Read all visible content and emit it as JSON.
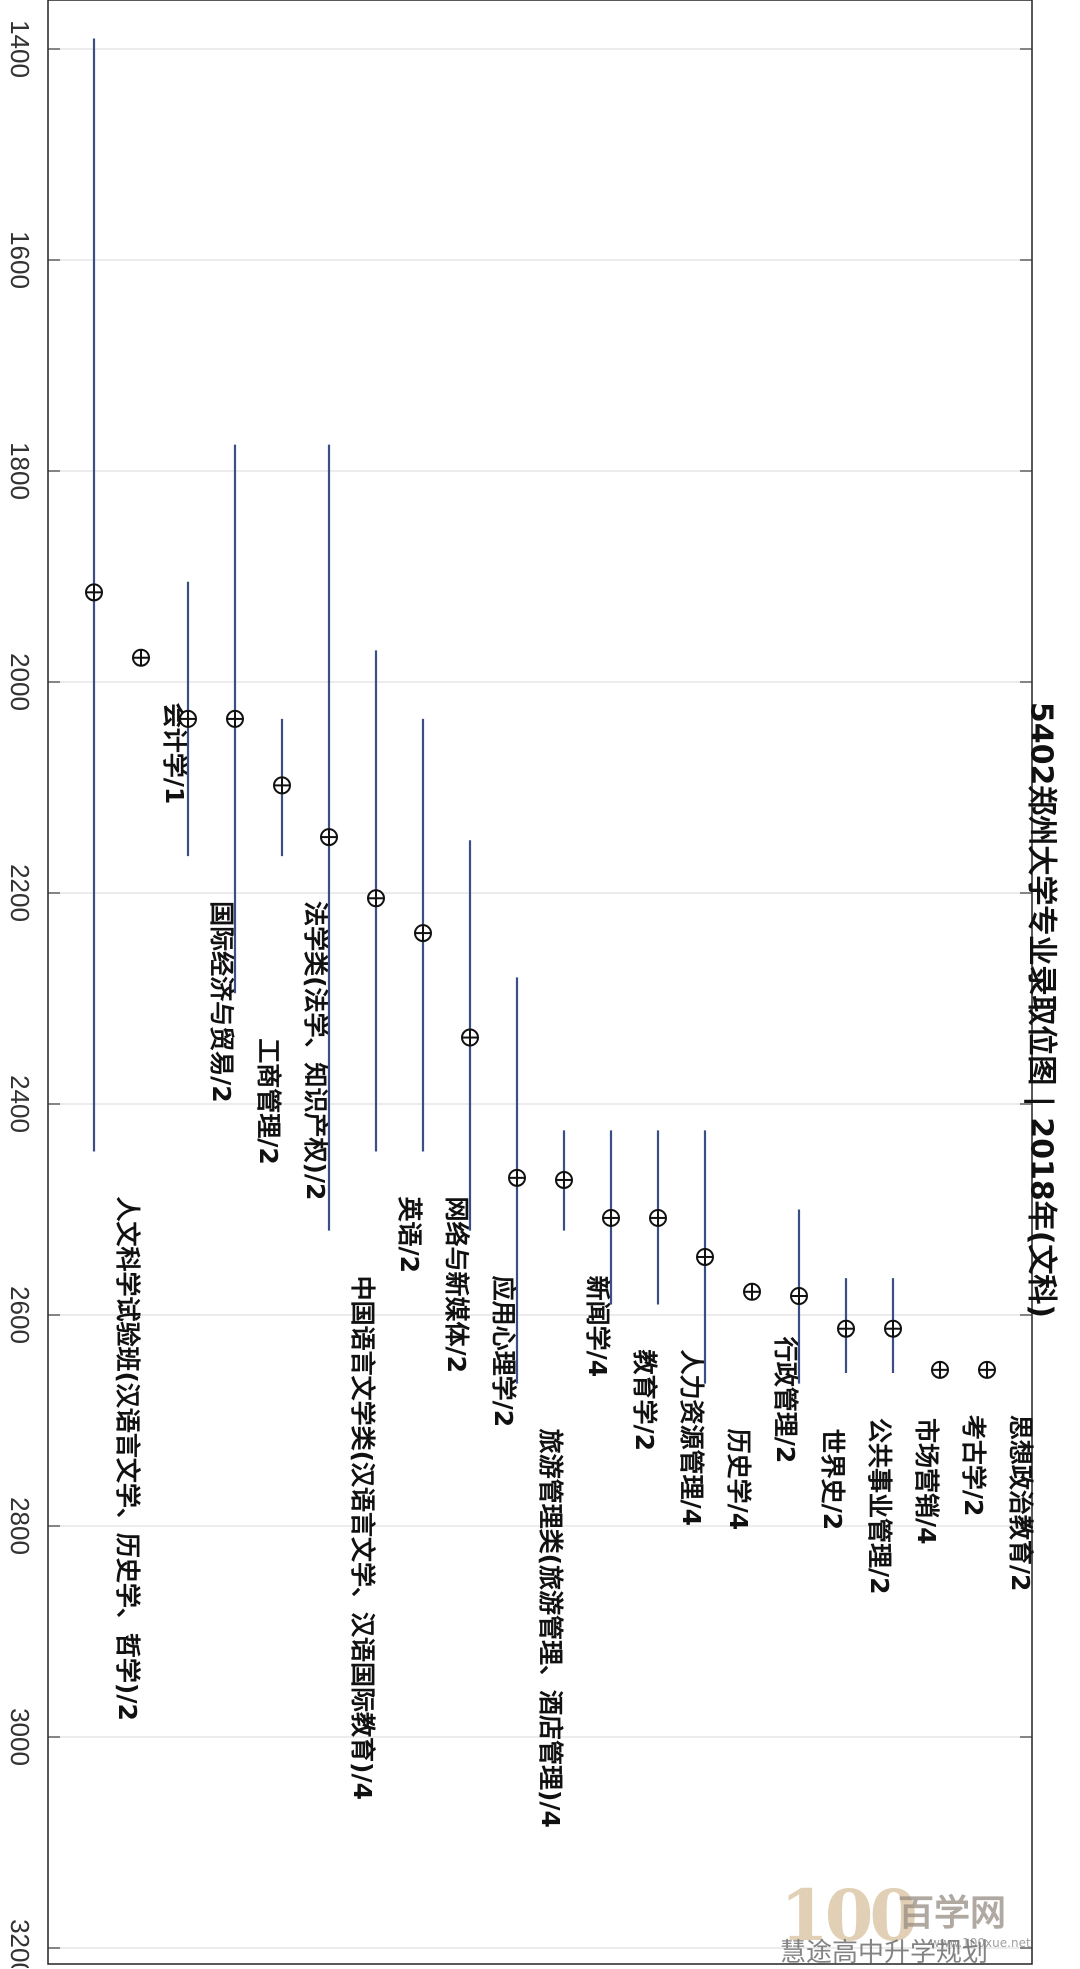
{
  "chart_data": {
    "type": "range",
    "title": "5402郑州大学专业录取位图 | 2018年(文科)",
    "orientation": "rotated-90-clockwise",
    "ylim": [
      1400,
      3200
    ],
    "ticks": [
      1400,
      1600,
      1800,
      2000,
      2200,
      2400,
      2600,
      2800,
      3000,
      3200
    ],
    "series": [
      {
        "label": "人文科学试验班(汉语言文学、历史学、哲学)/2",
        "min": 1390,
        "max": 2445,
        "value": 1915
      },
      {
        "label": "会计学/1",
        "value": 1977
      },
      {
        "label": "国际经济与贸易/2",
        "min": 1905,
        "max": 2165,
        "value": 2035
      },
      {
        "label": "工商管理/2",
        "min": 1775,
        "max": 2295,
        "value": 2035
      },
      {
        "label": "法学类(法学、知识产权)/2",
        "min": 2035,
        "max": 2165,
        "value": 2098
      },
      {
        "label": "中国语言文学类(汉语言文学、汉语国际教育)/4",
        "min": 1775,
        "max": 2520,
        "value": 2147
      },
      {
        "label": "英语/2",
        "min": 1970,
        "max": 2445,
        "value": 2205
      },
      {
        "label": "网络与新媒体/2",
        "min": 2035,
        "max": 2445,
        "value": 2238
      },
      {
        "label": "应用心理学/2",
        "min": 2150,
        "max": 2520,
        "value": 2337
      },
      {
        "label": "旅游管理类(旅游管理、酒店管理)/4",
        "min": 2280,
        "max": 2665,
        "value": 2470
      },
      {
        "label": "新闻学/4",
        "min": 2425,
        "max": 2520,
        "value": 2472
      },
      {
        "label": "教育学/2",
        "min": 2425,
        "max": 2590,
        "value": 2508
      },
      {
        "label": "人力资源管理/4",
        "min": 2425,
        "max": 2590,
        "value": 2508
      },
      {
        "label": "历史学/4",
        "min": 2425,
        "max": 2665,
        "value": 2545
      },
      {
        "label": "行政管理/2",
        "value": 2578
      },
      {
        "label": "世界史/2",
        "min": 2500,
        "max": 2665,
        "value": 2582
      },
      {
        "label": "公共事业管理/2",
        "min": 2565,
        "max": 2655,
        "value": 2613
      },
      {
        "label": "市场营销/4",
        "min": 2565,
        "max": 2655,
        "value": 2613
      },
      {
        "label": "考古学/2",
        "value": 2652
      },
      {
        "label": "思想政治教育/2",
        "value": 2652
      }
    ]
  },
  "watermark": {
    "logo_number": "100",
    "logo_name": "百学网",
    "account": "慧途高中升学规划",
    "url": "www.100xue.net"
  }
}
